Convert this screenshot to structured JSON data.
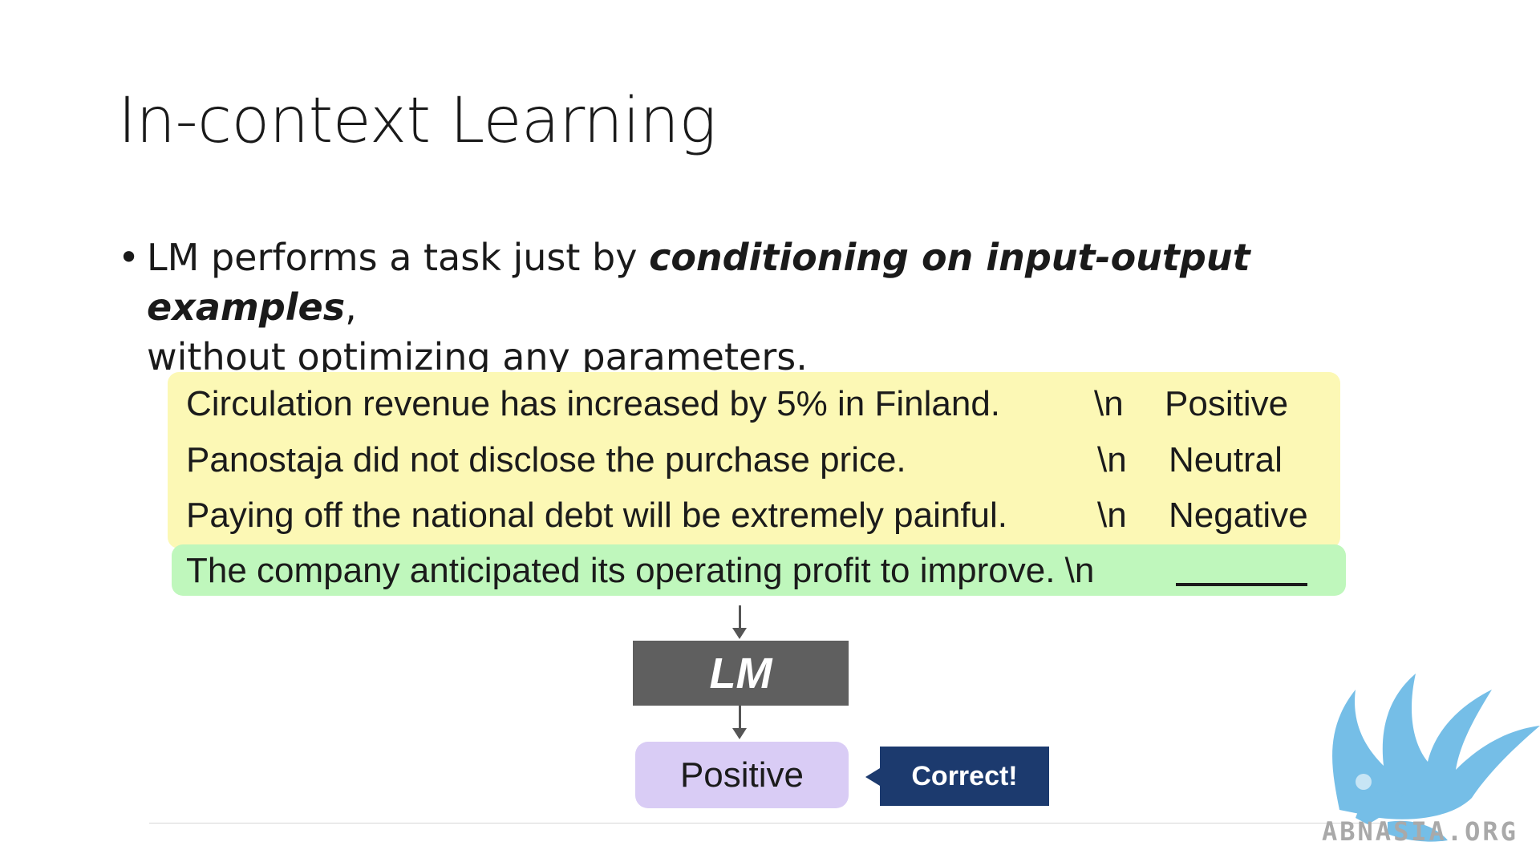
{
  "slide": {
    "title": "In-context Learning",
    "bullet": {
      "marker": "•",
      "text_before": "LM performs a task just by ",
      "emphasis": "conditioning on input-output examples",
      "text_after_line1": ",",
      "text_line2": "without optimizing any parameters."
    }
  },
  "diagram": {
    "examples": [
      {
        "text": "Circulation revenue has increased by 5% in Finland.",
        "separator": "\\n",
        "label": "Positive"
      },
      {
        "text": "Panostaja did not disclose the purchase price.",
        "separator": "\\n",
        "label": "Neutral"
      },
      {
        "text": "Paying off the national debt will be extremely painful.",
        "separator": "\\n",
        "label": "Negative"
      }
    ],
    "query": {
      "text": "The company anticipated its operating profit to improve. \\n"
    },
    "model_label": "LM",
    "output_label": "Positive",
    "feedback_label": "Correct!",
    "colors": {
      "examples_bg": "#fcf8b5",
      "query_bg": "#bff7bc",
      "model_bg": "#5f5f5f",
      "output_bg": "#d9ccf5",
      "feedback_bg": "#1c3a6e"
    }
  },
  "watermark": {
    "logo_icon": "griffin-logo-icon",
    "text": "ABNASIA.ORG",
    "color": "#5db3e3"
  }
}
